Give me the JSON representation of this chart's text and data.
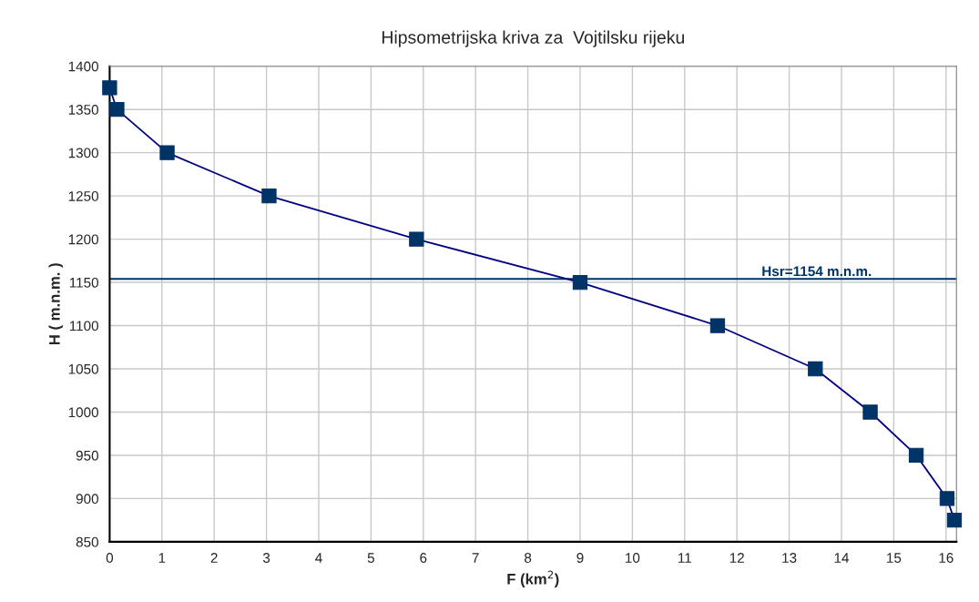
{
  "chart_data": {
    "type": "line",
    "title": "Hipsometrijska kriva za  Vojtilsku rijeku",
    "xlabel": "F (km$^{2}$)",
    "ylabel": "H ( m.n.m. )",
    "x": [
      0,
      0.14,
      1.1,
      3.05,
      5.87,
      9.0,
      11.63,
      13.5,
      14.55,
      15.43,
      16.02,
      16.16
    ],
    "series": [
      {
        "color": "#000080",
        "values": [
          1375,
          1350,
          1300,
          1250,
          1200,
          1150,
          1100,
          1050,
          1000,
          950,
          900,
          875
        ]
      }
    ],
    "xlim": [
      0,
      16.2
    ],
    "xticks": [
      0,
      1,
      2,
      3,
      4,
      5,
      6,
      7,
      8,
      9,
      10,
      11,
      12,
      13,
      14,
      15,
      16
    ],
    "ylim": [
      850,
      1400
    ],
    "yticks": [
      850,
      900,
      950,
      1000,
      1050,
      1100,
      1150,
      1200,
      1250,
      1300,
      1350,
      1400
    ],
    "ref_lines": [
      {
        "axis": "y",
        "value": 1154,
        "label": "Hsr=1154 m.n.m.",
        "color": "#003366"
      }
    ],
    "marker": "square",
    "grid": true,
    "legend": false
  }
}
